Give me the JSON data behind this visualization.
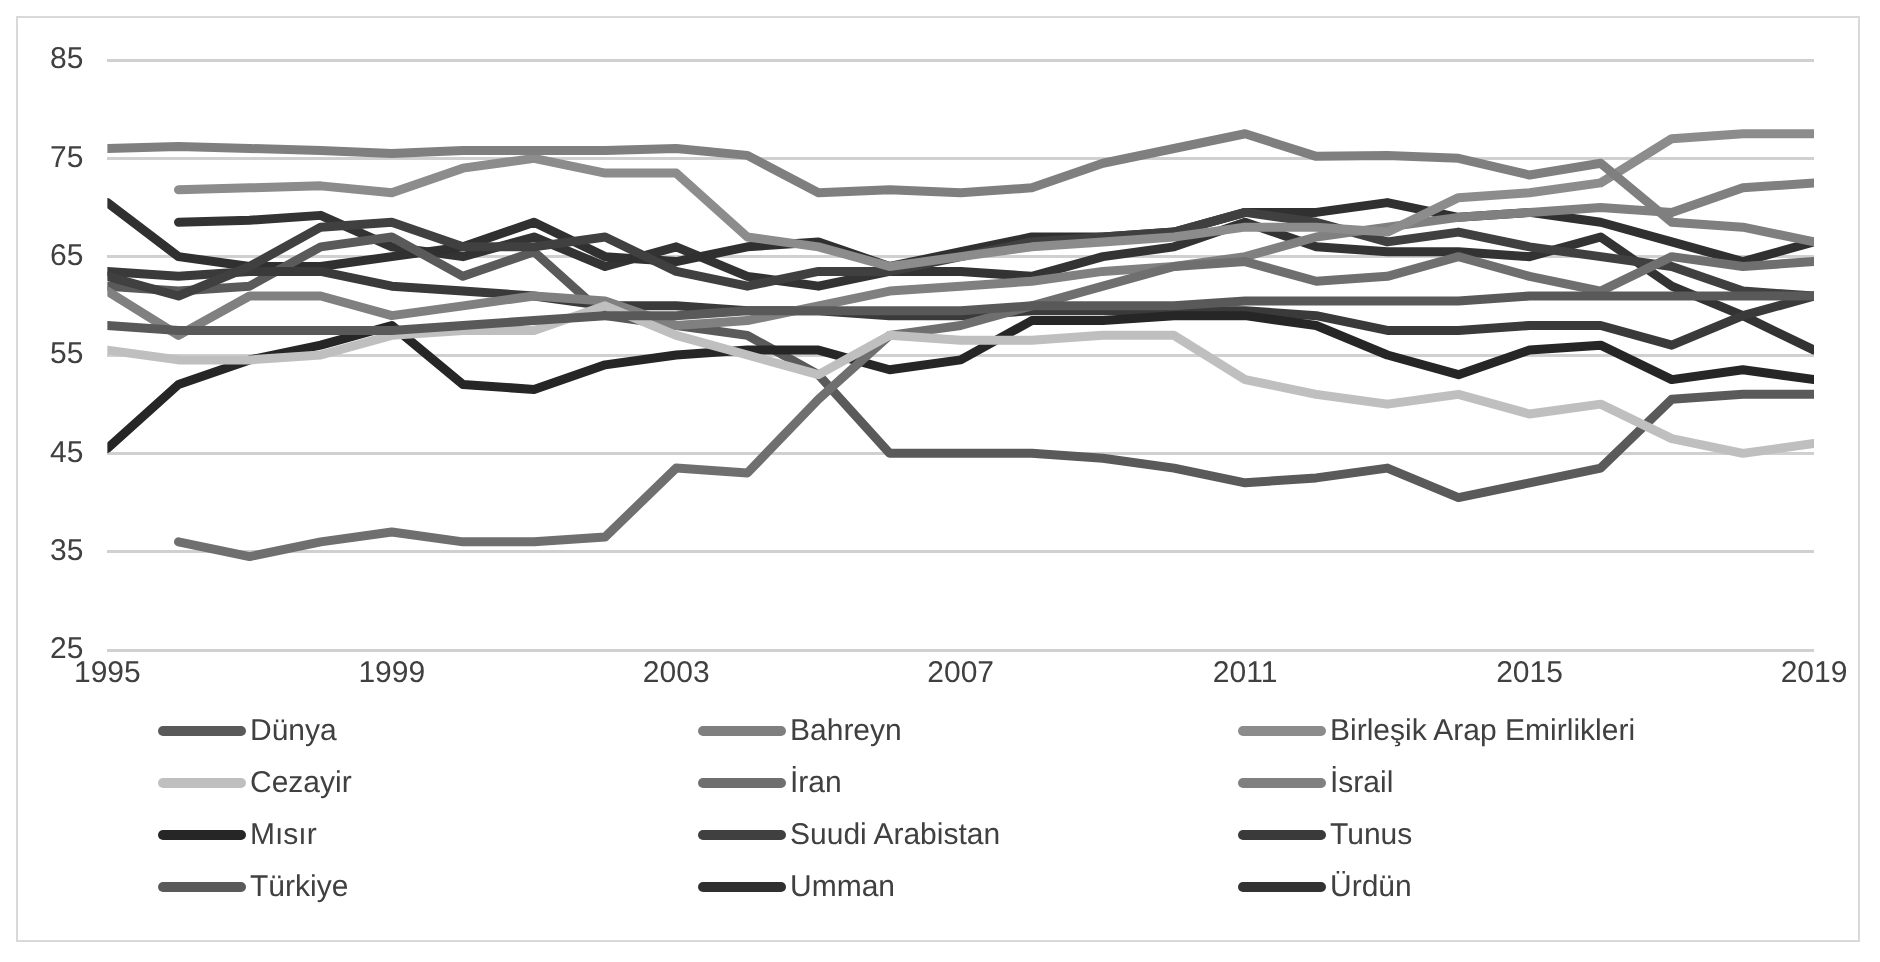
{
  "chart_data": {
    "type": "line",
    "x": [
      1995,
      1996,
      1997,
      1998,
      1999,
      2000,
      2001,
      2002,
      2003,
      2004,
      2005,
      2006,
      2007,
      2008,
      2009,
      2010,
      2011,
      2012,
      2013,
      2014,
      2015,
      2016,
      2017,
      2018,
      2019
    ],
    "xlim": [
      1995,
      2019
    ],
    "xticks": [
      1995,
      1999,
      2003,
      2007,
      2011,
      2015,
      2019
    ],
    "ylim": [
      25,
      85
    ],
    "yticks": [
      25,
      35,
      45,
      55,
      65,
      75,
      85
    ],
    "grid": "y",
    "legend": "bottom",
    "marker": "none",
    "line_style": "solid",
    "series": [
      {
        "name": "Dünya",
        "color": "#595959",
        "values": [
          58,
          57.5,
          57.5,
          57.5,
          57.5,
          58,
          58.5,
          59,
          59,
          59.5,
          59.5,
          59.5,
          59.5,
          60,
          60,
          60,
          60.5,
          60.5,
          60.5,
          60.5,
          61,
          61,
          61,
          61,
          61
        ]
      },
      {
        "name": "Bahreyn",
        "color": "#7f7f7f",
        "values": [
          76,
          76.2,
          76,
          75.8,
          75.5,
          75.8,
          75.8,
          75.8,
          76,
          75.3,
          71.5,
          71.8,
          71.5,
          72,
          74.5,
          76,
          77.5,
          75.2,
          75.3,
          75,
          73.3,
          74.5,
          68.5,
          68,
          66.5
        ]
      },
      {
        "name": "Birleşik Arap Emirlikleri",
        "color": "#8c8c8c",
        "values": [
          null,
          71.8,
          72,
          72.2,
          71.5,
          74,
          75,
          73.5,
          73.5,
          67,
          66,
          64,
          65,
          66,
          66.5,
          67,
          68,
          68,
          67.5,
          71,
          71.5,
          72.5,
          77,
          77.5,
          77.5
        ]
      },
      {
        "name": "Cezayir",
        "color": "#bfbfbf",
        "values": [
          55.5,
          54.5,
          54.5,
          55,
          57,
          57.5,
          57.5,
          60,
          57,
          55,
          53,
          57,
          56.5,
          56.5,
          57,
          57,
          52.5,
          51,
          50,
          51,
          49,
          50,
          46.5,
          45,
          46
        ]
      },
      {
        "name": "İran",
        "color": "#6f6f6f",
        "values": [
          null,
          36,
          34.5,
          36,
          37,
          36,
          36,
          36.5,
          43.5,
          43,
          50.5,
          57,
          58,
          60,
          62,
          64,
          64.5,
          62.5,
          63,
          65,
          63,
          61.5,
          65,
          64,
          64.5
        ]
      },
      {
        "name": "İsrail",
        "color": "#808080",
        "values": [
          61.5,
          57,
          61,
          61,
          59,
          60,
          61,
          60.5,
          58,
          58.5,
          60,
          61.5,
          62,
          62.5,
          63.5,
          64,
          65,
          67,
          68,
          69,
          69.5,
          70,
          69.5,
          72,
          72.5
        ]
      },
      {
        "name": "Mısır",
        "color": "#262626",
        "values": [
          45.5,
          52,
          54.5,
          56,
          58,
          52,
          51.5,
          54,
          55,
          55.5,
          55.5,
          53.5,
          54.5,
          58.5,
          58.5,
          59,
          59,
          58,
          55,
          53,
          55.5,
          56,
          52.5,
          53.5,
          52.5
        ]
      },
      {
        "name": "Suudi Arabistan",
        "color": "#404040",
        "values": [
          63,
          61,
          64,
          68,
          68.5,
          66,
          66,
          67,
          63.5,
          62,
          63.5,
          63.5,
          65,
          66.5,
          67,
          67.5,
          69.5,
          68.5,
          66.5,
          67.5,
          66,
          65,
          64,
          61.5,
          61
        ]
      },
      {
        "name": "Tunus",
        "color": "#3a3a3a",
        "values": [
          63.5,
          63,
          63.5,
          63.5,
          62,
          61.5,
          61,
          60,
          60,
          59.5,
          59.5,
          59,
          59,
          59.5,
          59.5,
          59.5,
          59.5,
          59,
          57.5,
          57.5,
          58,
          58,
          56,
          59,
          61
        ]
      },
      {
        "name": "Türkiye",
        "color": "#5a5a5a",
        "values": [
          62,
          61.5,
          62,
          66,
          67,
          63,
          65.5,
          59,
          58,
          57,
          53,
          45,
          45,
          45,
          44.5,
          43.5,
          42,
          42.5,
          43.5,
          40.5,
          42,
          43.5,
          50.5,
          51,
          51
        ]
      },
      {
        "name": "Umman",
        "color": "#303030",
        "values": [
          70.5,
          65,
          64,
          64,
          65,
          66,
          68.5,
          65,
          64.5,
          66,
          66.5,
          64,
          65.5,
          67,
          67,
          67.5,
          69.5,
          69.5,
          70.5,
          69,
          69.5,
          68.5,
          66.5,
          64.5,
          66.5
        ]
      },
      {
        "name": "Ürdün",
        "color": "#333333",
        "values": [
          null,
          68.5,
          68.7,
          69.2,
          66,
          65,
          67,
          64,
          66,
          63,
          62,
          63.5,
          63.5,
          63,
          65,
          66,
          68.5,
          66,
          65.5,
          65.5,
          65,
          67,
          62,
          59,
          55.5
        ]
      }
    ]
  }
}
